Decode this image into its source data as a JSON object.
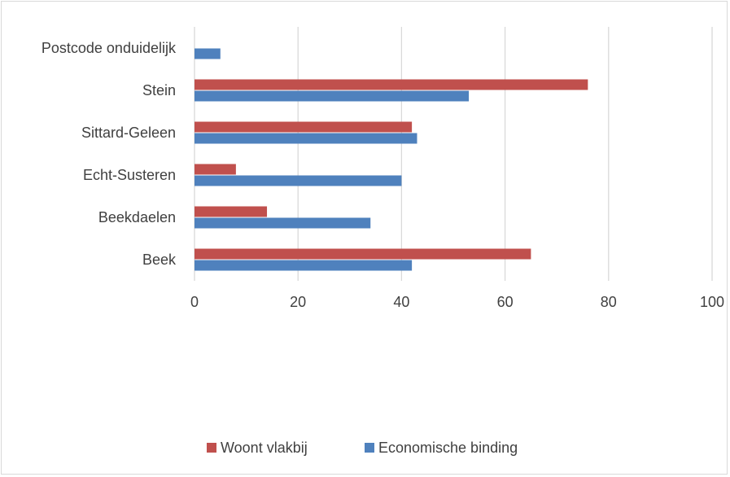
{
  "chart_data": {
    "type": "bar",
    "orientation": "horizontal",
    "categories": [
      "Postcode onduidelijk",
      "Stein",
      "Sittard-Geleen",
      "Echt-Susteren",
      "Beekdaelen",
      "Beek"
    ],
    "series": [
      {
        "name": "Woont vlakbij",
        "color": "#c0504d",
        "values": [
          0,
          76,
          42,
          8,
          14,
          65
        ]
      },
      {
        "name": "Economische binding",
        "color": "#4f81bd",
        "values": [
          5,
          53,
          43,
          40,
          34,
          42
        ]
      }
    ],
    "xlim": [
      0,
      100
    ],
    "xticks": [
      "0",
      "20",
      "40",
      "60",
      "80",
      "100"
    ],
    "grid": true,
    "legend_position": "bottom",
    "title": "",
    "xlabel": "",
    "ylabel": ""
  }
}
